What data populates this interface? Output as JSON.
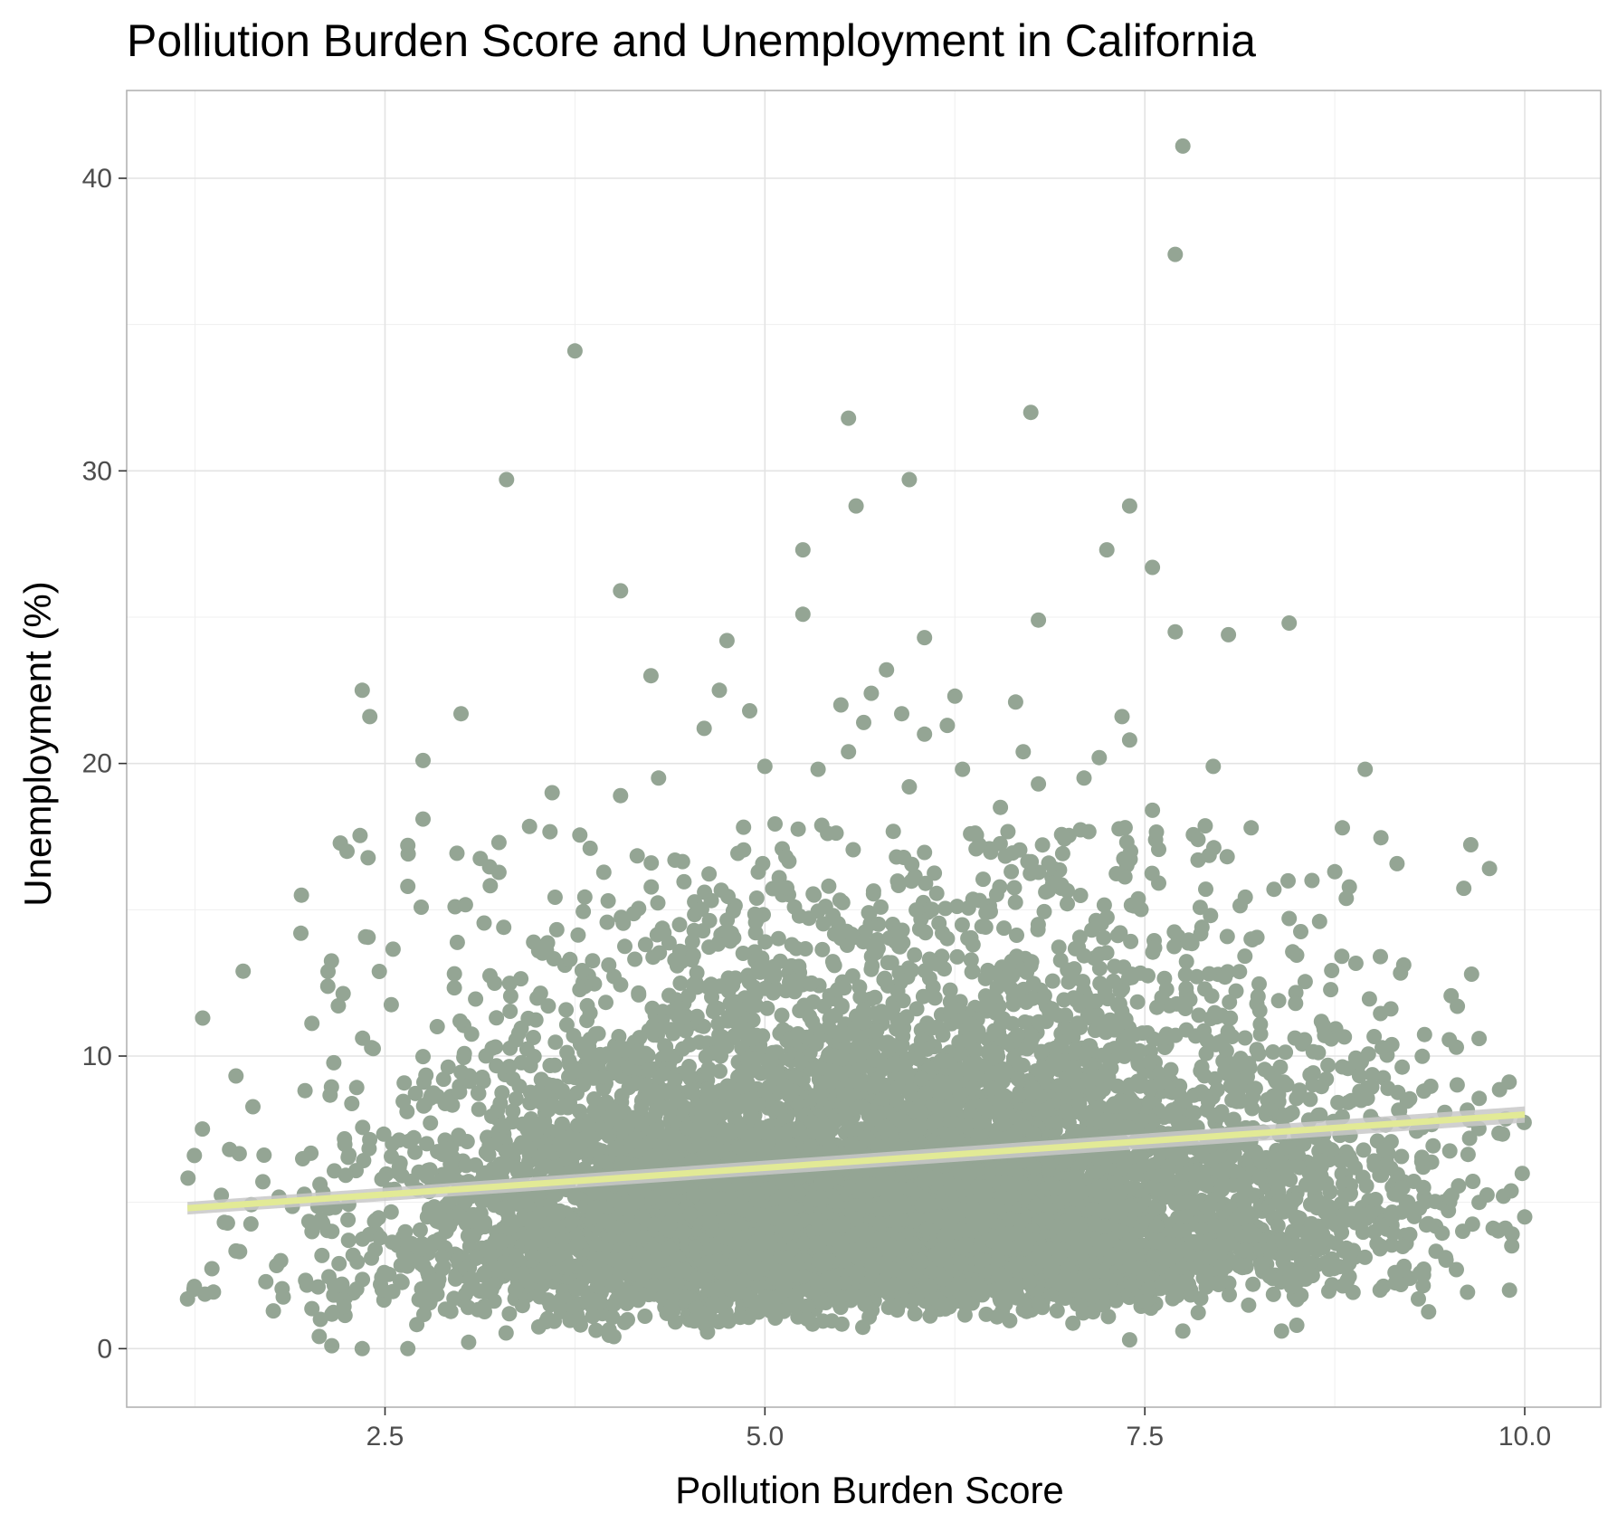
{
  "chart_data": {
    "type": "scatter",
    "title": "Polliution Burden Score and Unemployment in California",
    "xlabel": "Pollution Burden Score",
    "ylabel": "Unemployment (%)",
    "xlim": [
      0.8,
      10.5
    ],
    "ylim": [
      -2,
      43
    ],
    "x_ticks": [
      2.5,
      5.0,
      7.5,
      10.0
    ],
    "x_tick_labels": [
      "2.5",
      "5.0",
      "7.5",
      "10.0"
    ],
    "y_ticks": [
      0,
      10,
      20,
      30,
      40
    ],
    "y_tick_labels": [
      "0",
      "10",
      "20",
      "30",
      "40"
    ],
    "grid": true,
    "point_color": "#94a594",
    "trend_color": "#e2ea96",
    "confidence_band_color": "#c8c8c8",
    "trend_line": {
      "x": [
        1.2,
        10.0
      ],
      "y": [
        4.8,
        8.0
      ]
    },
    "bulk_distribution": {
      "x_range": [
        1.2,
        10.0
      ],
      "x_mean": 5.8,
      "x_sd": 1.55,
      "y_median": 5.5,
      "y_range": [
        0,
        18
      ],
      "approx_count": 8000
    },
    "outliers": [
      {
        "x": 7.75,
        "y": 41.1
      },
      {
        "x": 7.7,
        "y": 37.4
      },
      {
        "x": 3.75,
        "y": 34.1
      },
      {
        "x": 6.75,
        "y": 32.0
      },
      {
        "x": 5.55,
        "y": 31.8
      },
      {
        "x": 3.3,
        "y": 29.7
      },
      {
        "x": 5.95,
        "y": 29.7
      },
      {
        "x": 5.6,
        "y": 28.8
      },
      {
        "x": 7.4,
        "y": 28.8
      },
      {
        "x": 5.25,
        "y": 27.3
      },
      {
        "x": 7.25,
        "y": 27.3
      },
      {
        "x": 7.55,
        "y": 26.7
      },
      {
        "x": 4.05,
        "y": 25.9
      },
      {
        "x": 5.25,
        "y": 25.1
      },
      {
        "x": 6.8,
        "y": 24.9
      },
      {
        "x": 8.45,
        "y": 24.8
      },
      {
        "x": 7.7,
        "y": 24.5
      },
      {
        "x": 8.05,
        "y": 24.4
      },
      {
        "x": 6.05,
        "y": 24.3
      },
      {
        "x": 4.75,
        "y": 24.2
      },
      {
        "x": 5.8,
        "y": 23.2
      },
      {
        "x": 4.25,
        "y": 23.0
      },
      {
        "x": 2.35,
        "y": 22.5
      },
      {
        "x": 4.7,
        "y": 22.5
      },
      {
        "x": 5.7,
        "y": 22.4
      },
      {
        "x": 6.25,
        "y": 22.3
      },
      {
        "x": 6.65,
        "y": 22.1
      },
      {
        "x": 5.5,
        "y": 22.0
      },
      {
        "x": 3.0,
        "y": 21.7
      },
      {
        "x": 2.4,
        "y": 21.6
      },
      {
        "x": 7.35,
        "y": 21.6
      },
      {
        "x": 4.9,
        "y": 21.8
      },
      {
        "x": 5.9,
        "y": 21.7
      },
      {
        "x": 6.2,
        "y": 21.3
      },
      {
        "x": 4.6,
        "y": 21.2
      },
      {
        "x": 6.05,
        "y": 21.0
      },
      {
        "x": 7.4,
        "y": 20.8
      },
      {
        "x": 5.65,
        "y": 21.4
      },
      {
        "x": 6.7,
        "y": 20.4
      },
      {
        "x": 5.55,
        "y": 20.4
      },
      {
        "x": 7.2,
        "y": 20.2
      },
      {
        "x": 2.75,
        "y": 20.1
      },
      {
        "x": 7.95,
        "y": 19.9
      },
      {
        "x": 8.95,
        "y": 19.8
      },
      {
        "x": 5.0,
        "y": 19.9
      },
      {
        "x": 6.3,
        "y": 19.8
      },
      {
        "x": 5.35,
        "y": 19.8
      },
      {
        "x": 7.1,
        "y": 19.5
      },
      {
        "x": 4.3,
        "y": 19.5
      },
      {
        "x": 6.8,
        "y": 19.3
      },
      {
        "x": 5.95,
        "y": 19.2
      },
      {
        "x": 3.6,
        "y": 19.0
      },
      {
        "x": 4.05,
        "y": 18.9
      },
      {
        "x": 6.55,
        "y": 18.5
      },
      {
        "x": 7.55,
        "y": 18.4
      },
      {
        "x": 2.75,
        "y": 18.1
      },
      {
        "x": 8.2,
        "y": 17.8
      },
      {
        "x": 8.8,
        "y": 17.8
      },
      {
        "x": 7.85,
        "y": 17.4
      },
      {
        "x": 2.25,
        "y": 17.0
      },
      {
        "x": 3.25,
        "y": 17.3
      },
      {
        "x": 3.85,
        "y": 17.1
      },
      {
        "x": 2.65,
        "y": 17.2
      },
      {
        "x": 8.75,
        "y": 16.3
      },
      {
        "x": 8.6,
        "y": 16.0
      },
      {
        "x": 7.85,
        "y": 16.7
      },
      {
        "x": 2.65,
        "y": 15.8
      },
      {
        "x": 1.95,
        "y": 15.5
      },
      {
        "x": 8.35,
        "y": 15.7
      },
      {
        "x": 1.3,
        "y": 11.3
      },
      {
        "x": 1.2,
        "y": 1.7
      },
      {
        "x": 10.0,
        "y": 4.5
      },
      {
        "x": 9.9,
        "y": 2.0
      },
      {
        "x": 9.7,
        "y": 10.6
      },
      {
        "x": 9.65,
        "y": 12.8
      },
      {
        "x": 9.7,
        "y": 5.0
      },
      {
        "x": 9.55,
        "y": 10.3
      },
      {
        "x": 9.3,
        "y": 1.7
      },
      {
        "x": 9.55,
        "y": 2.7
      },
      {
        "x": 2.15,
        "y": 0.1
      },
      {
        "x": 2.35,
        "y": 0.0
      },
      {
        "x": 2.65,
        "y": 0.0
      },
      {
        "x": 8.4,
        "y": 0.6
      },
      {
        "x": 8.5,
        "y": 0.8
      },
      {
        "x": 7.75,
        "y": 0.6
      },
      {
        "x": 7.4,
        "y": 0.3
      },
      {
        "x": 9.05,
        "y": 13.4
      },
      {
        "x": 8.45,
        "y": 14.7
      },
      {
        "x": 8.65,
        "y": 14.6
      },
      {
        "x": 8.2,
        "y": 14.0
      }
    ]
  }
}
